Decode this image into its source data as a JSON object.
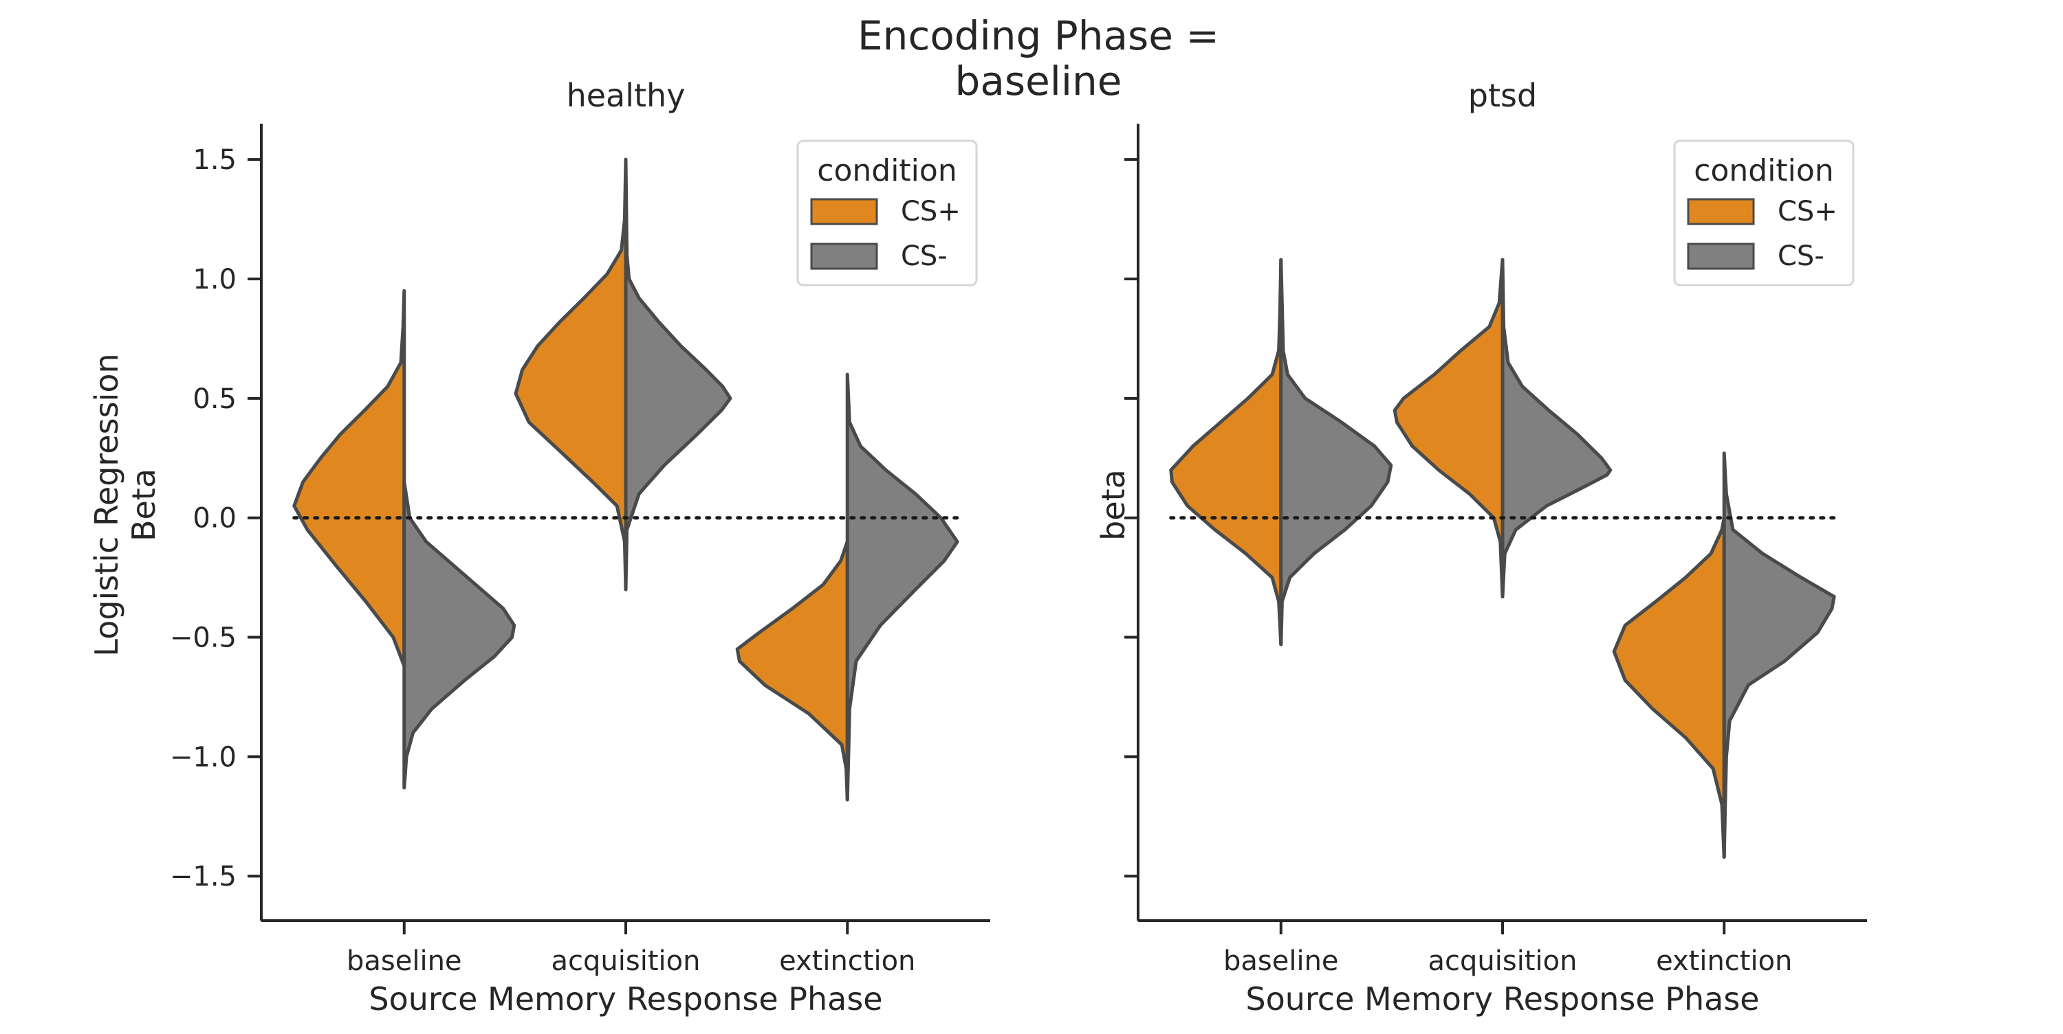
{
  "chart_data": {
    "type": "violin",
    "title": "Encoding Phase =\nbaseline",
    "title_lines": [
      "Encoding Phase =",
      "baseline"
    ],
    "xlabel": "Source Memory Response Phase",
    "ylim": [
      -1.6,
      1.65
    ],
    "yticks": [
      -1.5,
      -1.0,
      -0.5,
      0.0,
      0.5,
      1.0,
      1.5
    ],
    "ytick_labels": [
      "−1.5",
      "−1.0",
      "−0.5",
      "0.0",
      "0.5",
      "1.0",
      "1.5"
    ],
    "reference_line": {
      "y": 0.0,
      "style": "dotted"
    },
    "categories": [
      "baseline",
      "acquisition",
      "extinction"
    ],
    "legend": {
      "title": "condition",
      "placement": "top-right",
      "entries": [
        "CS+",
        "CS-"
      ]
    },
    "colors": {
      "CS+": "#e0881f",
      "CS-": "#808080"
    },
    "split": true,
    "panels": [
      {
        "title": "healthy",
        "ylabel_lines": [
          "Logistic Regression",
          "Beta"
        ],
        "show_ytick_labels": true,
        "violins": [
          {
            "category": "baseline",
            "condition": "CS+",
            "range": [
              -0.62,
              0.95
            ],
            "width": 0.39,
            "profile": [
              [
                -0.62,
                0.0
              ],
              [
                -0.5,
                0.1
              ],
              [
                -0.35,
                0.35
              ],
              [
                -0.2,
                0.62
              ],
              [
                -0.05,
                0.88
              ],
              [
                0.05,
                1.0
              ],
              [
                0.15,
                0.92
              ],
              [
                0.25,
                0.76
              ],
              [
                0.35,
                0.58
              ],
              [
                0.45,
                0.36
              ],
              [
                0.55,
                0.15
              ],
              [
                0.65,
                0.03
              ],
              [
                0.8,
                0.01
              ],
              [
                0.95,
                0.0
              ]
            ]
          },
          {
            "category": "baseline",
            "condition": "CS-",
            "range": [
              -1.13,
              0.15
            ],
            "width": 0.39,
            "profile": [
              [
                -1.13,
                0.0
              ],
              [
                -1.0,
                0.02
              ],
              [
                -0.9,
                0.08
              ],
              [
                -0.8,
                0.25
              ],
              [
                -0.68,
                0.55
              ],
              [
                -0.58,
                0.82
              ],
              [
                -0.5,
                0.98
              ],
              [
                -0.45,
                1.0
              ],
              [
                -0.38,
                0.9
              ],
              [
                -0.3,
                0.7
              ],
              [
                -0.2,
                0.45
              ],
              [
                -0.1,
                0.2
              ],
              [
                0.0,
                0.05
              ],
              [
                0.15,
                0.0
              ]
            ]
          },
          {
            "category": "acquisition",
            "condition": "CS+",
            "range": [
              -0.3,
              1.5
            ],
            "width": 0.39,
            "profile": [
              [
                -0.3,
                0.0
              ],
              [
                -0.1,
                0.01
              ],
              [
                0.05,
                0.08
              ],
              [
                0.15,
                0.3
              ],
              [
                0.28,
                0.6
              ],
              [
                0.4,
                0.88
              ],
              [
                0.52,
                1.0
              ],
              [
                0.62,
                0.94
              ],
              [
                0.72,
                0.8
              ],
              [
                0.82,
                0.6
              ],
              [
                0.92,
                0.38
              ],
              [
                1.02,
                0.17
              ],
              [
                1.12,
                0.04
              ],
              [
                1.25,
                0.01
              ],
              [
                1.5,
                0.0
              ]
            ]
          },
          {
            "category": "acquisition",
            "condition": "CS-",
            "range": [
              -0.3,
              1.5
            ],
            "width": 0.39,
            "profile": [
              [
                -0.3,
                0.0
              ],
              [
                -0.05,
                0.01
              ],
              [
                0.1,
                0.12
              ],
              [
                0.22,
                0.35
              ],
              [
                0.35,
                0.65
              ],
              [
                0.45,
                0.87
              ],
              [
                0.5,
                0.95
              ],
              [
                0.55,
                0.88
              ],
              [
                0.62,
                0.73
              ],
              [
                0.72,
                0.5
              ],
              [
                0.82,
                0.3
              ],
              [
                0.92,
                0.12
              ],
              [
                1.0,
                0.03
              ],
              [
                1.1,
                0.01
              ],
              [
                1.5,
                0.0
              ]
            ]
          },
          {
            "category": "extinction",
            "condition": "CS+",
            "range": [
              -1.18,
              -0.1
            ],
            "width": 0.39,
            "profile": [
              [
                -1.18,
                0.0
              ],
              [
                -1.05,
                0.01
              ],
              [
                -0.95,
                0.05
              ],
              [
                -0.82,
                0.35
              ],
              [
                -0.7,
                0.75
              ],
              [
                -0.6,
                0.98
              ],
              [
                -0.55,
                1.0
              ],
              [
                -0.48,
                0.8
              ],
              [
                -0.38,
                0.5
              ],
              [
                -0.28,
                0.22
              ],
              [
                -0.18,
                0.06
              ],
              [
                -0.1,
                0.0
              ]
            ]
          },
          {
            "category": "extinction",
            "condition": "CS-",
            "range": [
              -1.18,
              0.6
            ],
            "width": 0.39,
            "profile": [
              [
                -1.18,
                0.0
              ],
              [
                -1.0,
                0.01
              ],
              [
                -0.8,
                0.02
              ],
              [
                -0.6,
                0.08
              ],
              [
                -0.45,
                0.3
              ],
              [
                -0.3,
                0.62
              ],
              [
                -0.18,
                0.88
              ],
              [
                -0.1,
                1.0
              ],
              [
                0.0,
                0.85
              ],
              [
                0.1,
                0.62
              ],
              [
                0.2,
                0.35
              ],
              [
                0.3,
                0.12
              ],
              [
                0.4,
                0.02
              ],
              [
                0.6,
                0.0
              ]
            ]
          }
        ]
      },
      {
        "title": "ptsd",
        "ylabel_lines": [
          "beta"
        ],
        "show_ytick_labels": false,
        "violins": [
          {
            "category": "baseline",
            "condition": "CS+",
            "range": [
              -0.53,
              1.08
            ],
            "width": 0.39,
            "profile": [
              [
                -0.53,
                0.0
              ],
              [
                -0.35,
                0.02
              ],
              [
                -0.25,
                0.08
              ],
              [
                -0.15,
                0.32
              ],
              [
                -0.05,
                0.6
              ],
              [
                0.05,
                0.85
              ],
              [
                0.15,
                0.99
              ],
              [
                0.2,
                1.0
              ],
              [
                0.3,
                0.8
              ],
              [
                0.4,
                0.55
              ],
              [
                0.5,
                0.3
              ],
              [
                0.6,
                0.08
              ],
              [
                0.7,
                0.02
              ],
              [
                0.85,
                0.01
              ],
              [
                1.08,
                0.0
              ]
            ]
          },
          {
            "category": "baseline",
            "condition": "CS-",
            "range": [
              -0.53,
              1.08
            ],
            "width": 0.39,
            "profile": [
              [
                -0.53,
                0.0
              ],
              [
                -0.35,
                0.01
              ],
              [
                -0.25,
                0.08
              ],
              [
                -0.15,
                0.3
              ],
              [
                -0.05,
                0.58
              ],
              [
                0.05,
                0.82
              ],
              [
                0.15,
                0.97
              ],
              [
                0.22,
                1.0
              ],
              [
                0.3,
                0.85
              ],
              [
                0.4,
                0.55
              ],
              [
                0.5,
                0.22
              ],
              [
                0.6,
                0.06
              ],
              [
                0.7,
                0.02
              ],
              [
                1.08,
                0.0
              ]
            ]
          },
          {
            "category": "acquisition",
            "condition": "CS+",
            "range": [
              -0.33,
              1.08
            ],
            "width": 0.39,
            "profile": [
              [
                -0.33,
                0.0
              ],
              [
                -0.1,
                0.02
              ],
              [
                0.0,
                0.08
              ],
              [
                0.1,
                0.3
              ],
              [
                0.2,
                0.58
              ],
              [
                0.3,
                0.82
              ],
              [
                0.4,
                0.96
              ],
              [
                0.45,
                0.98
              ],
              [
                0.5,
                0.9
              ],
              [
                0.6,
                0.62
              ],
              [
                0.7,
                0.38
              ],
              [
                0.8,
                0.12
              ],
              [
                0.9,
                0.03
              ],
              [
                1.08,
                0.0
              ]
            ]
          },
          {
            "category": "acquisition",
            "condition": "CS-",
            "range": [
              -0.33,
              1.08
            ],
            "width": 0.39,
            "profile": [
              [
                -0.33,
                0.0
              ],
              [
                -0.15,
                0.02
              ],
              [
                -0.05,
                0.12
              ],
              [
                0.05,
                0.4
              ],
              [
                0.12,
                0.7
              ],
              [
                0.18,
                0.95
              ],
              [
                0.2,
                0.98
              ],
              [
                0.25,
                0.9
              ],
              [
                0.35,
                0.68
              ],
              [
                0.45,
                0.42
              ],
              [
                0.55,
                0.18
              ],
              [
                0.65,
                0.05
              ],
              [
                0.8,
                0.01
              ],
              [
                1.08,
                0.0
              ]
            ]
          },
          {
            "category": "extinction",
            "condition": "CS+",
            "range": [
              -1.42,
              0.0
            ],
            "width": 0.39,
            "profile": [
              [
                -1.42,
                0.0
              ],
              [
                -1.2,
                0.02
              ],
              [
                -1.05,
                0.1
              ],
              [
                -0.92,
                0.35
              ],
              [
                -0.8,
                0.65
              ],
              [
                -0.68,
                0.9
              ],
              [
                -0.56,
                1.0
              ],
              [
                -0.45,
                0.9
              ],
              [
                -0.35,
                0.62
              ],
              [
                -0.25,
                0.35
              ],
              [
                -0.15,
                0.12
              ],
              [
                -0.05,
                0.02
              ],
              [
                0.0,
                0.0
              ]
            ]
          },
          {
            "category": "extinction",
            "condition": "CS-",
            "range": [
              -1.42,
              0.27
            ],
            "width": 0.39,
            "profile": [
              [
                -1.42,
                0.0
              ],
              [
                -1.2,
                0.01
              ],
              [
                -1.0,
                0.02
              ],
              [
                -0.85,
                0.05
              ],
              [
                -0.7,
                0.22
              ],
              [
                -0.6,
                0.55
              ],
              [
                -0.48,
                0.85
              ],
              [
                -0.38,
                0.98
              ],
              [
                -0.33,
                1.0
              ],
              [
                -0.25,
                0.7
              ],
              [
                -0.15,
                0.35
              ],
              [
                -0.05,
                0.08
              ],
              [
                0.1,
                0.02
              ],
              [
                0.27,
                0.0
              ]
            ]
          }
        ]
      }
    ]
  }
}
